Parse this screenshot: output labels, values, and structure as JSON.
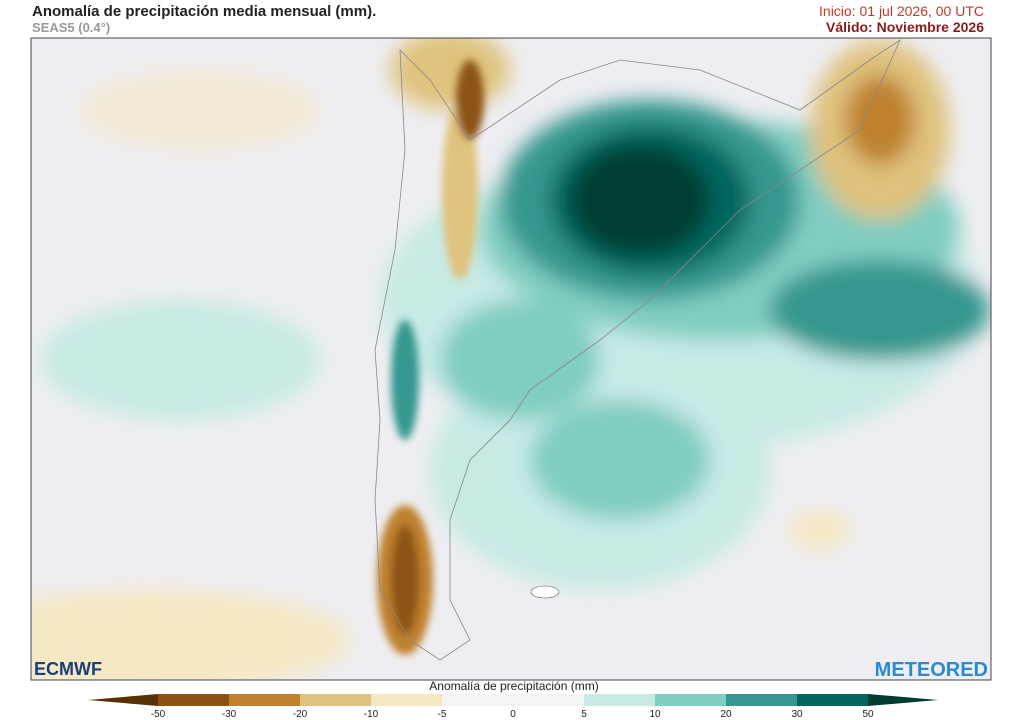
{
  "header": {
    "title": "Anomalía de precipitación media mensual (mm).",
    "subtitle": "SEAS5 (0.4°)",
    "init": "Inicio: 01 jul 2026, 00 UTC",
    "valid": "Válido: Noviembre 2026"
  },
  "logos": {
    "left": "ECMWF",
    "right": "METEORED"
  },
  "colorbar": {
    "label": "Anomalía de precipitación (mm)",
    "ticks": [
      -50,
      -30,
      -20,
      -10,
      -5,
      0,
      5,
      10,
      20,
      30,
      50
    ],
    "colors": [
      "#5a3005",
      "#8c5213",
      "#bf812d",
      "#dfc27d",
      "#f6e8c3",
      "#f4f4f4",
      "#f4f4f4",
      "#c7eae5",
      "#80cdc1",
      "#35978f",
      "#01665e",
      "#003c30"
    ]
  }
}
